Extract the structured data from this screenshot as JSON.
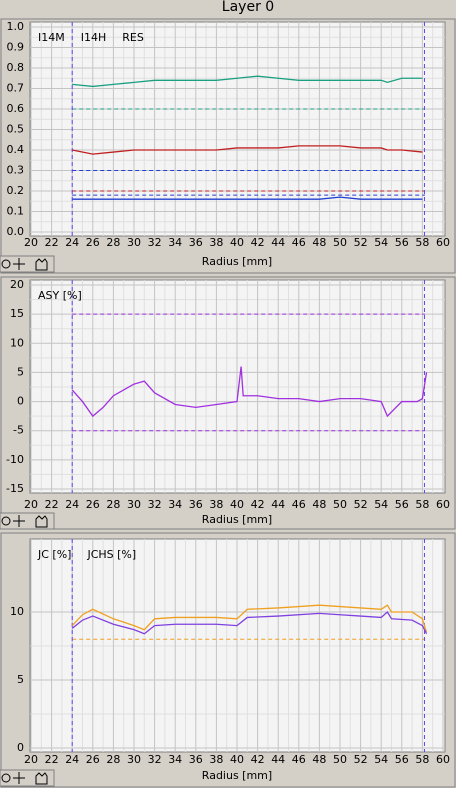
{
  "window": {
    "title": "Layer 0"
  },
  "chart_data": [
    {
      "type": "line",
      "xlabel": "Radius [mm]",
      "xlim": [
        20,
        60
      ],
      "xticks": [
        20,
        22,
        24,
        26,
        28,
        30,
        32,
        34,
        36,
        38,
        40,
        42,
        44,
        46,
        48,
        50,
        52,
        54,
        56,
        58,
        60
      ],
      "ylim": [
        0,
        1
      ],
      "yticks": [
        {
          "value": 0,
          "label": "0.0"
        },
        0.1,
        0.2,
        0.3,
        0.4,
        0.5,
        0.6,
        0.7,
        0.8,
        0.9,
        {
          "value": 1,
          "label": "1.0"
        }
      ],
      "grid": true,
      "minor_grid": true,
      "x": [
        24,
        26,
        28,
        30,
        32,
        34,
        36,
        38,
        40,
        42,
        44,
        46,
        48,
        50,
        52,
        54,
        54.6,
        56,
        58
      ],
      "series": [
        {
          "name": "I14M",
          "color": "#1aa080",
          "values": [
            0.72,
            0.71,
            0.72,
            0.73,
            0.74,
            0.74,
            0.74,
            0.74,
            0.75,
            0.76,
            0.75,
            0.74,
            0.74,
            0.74,
            0.74,
            0.74,
            0.73,
            0.75,
            0.75
          ]
        },
        {
          "name": "I14H",
          "color": "#2040d0",
          "values": [
            0.16,
            0.16,
            0.16,
            0.16,
            0.16,
            0.16,
            0.16,
            0.16,
            0.16,
            0.16,
            0.16,
            0.16,
            0.16,
            0.17,
            0.16,
            0.16,
            0.16,
            0.16,
            0.16
          ]
        },
        {
          "name": "RES",
          "color": "#c02020",
          "values": [
            0.4,
            0.38,
            0.39,
            0.4,
            0.4,
            0.4,
            0.4,
            0.4,
            0.41,
            0.41,
            0.41,
            0.42,
            0.42,
            0.42,
            0.41,
            0.41,
            0.4,
            0.4,
            0.39
          ]
        }
      ],
      "reference_lines": [
        {
          "value": 0.6,
          "color": "#1aa080"
        },
        {
          "value": 0.3,
          "color": "#2040d0"
        },
        {
          "value": 0.2,
          "color": "#c02020"
        },
        {
          "value": 0.18,
          "color": "#2040d0"
        }
      ],
      "x_reference_lines": [
        {
          "value": 24,
          "color": "#6040f0"
        },
        {
          "value": 58.2,
          "color": "#6040f0"
        }
      ]
    },
    {
      "type": "line",
      "xlabel": "Radius [mm]",
      "xlim": [
        20,
        60
      ],
      "xticks": [
        20,
        22,
        24,
        26,
        28,
        30,
        32,
        34,
        36,
        38,
        40,
        42,
        44,
        46,
        48,
        50,
        52,
        54,
        56,
        58,
        60
      ],
      "ylim": [
        -15,
        20
      ],
      "yticks": [
        -15,
        -10,
        -5,
        0,
        5,
        10,
        15,
        20
      ],
      "grid": true,
      "minor_grid": true,
      "x": [
        24,
        25,
        26,
        27,
        28,
        30,
        31,
        32,
        34,
        36,
        38,
        40,
        40.4,
        40.6,
        42,
        44,
        46,
        48,
        50,
        52,
        54,
        54.6,
        56,
        57.5,
        58,
        58.4
      ],
      "series": [
        {
          "name": "ASY [%]",
          "color": "#a030e0",
          "values": [
            2,
            0,
            -2.5,
            -1,
            1,
            3,
            3.5,
            1.5,
            -0.5,
            -1,
            -0.5,
            0,
            6,
            1,
            1,
            0.5,
            0.5,
            0,
            0.5,
            0.5,
            0,
            -2.5,
            0,
            0,
            0.5,
            5
          ]
        }
      ],
      "reference_lines": [
        {
          "value": 15,
          "color": "#a030e0"
        },
        {
          "value": -5,
          "color": "#a030e0"
        }
      ],
      "x_reference_lines": [
        {
          "value": 24,
          "color": "#6040f0"
        },
        {
          "value": 58.2,
          "color": "#6040f0"
        }
      ]
    },
    {
      "type": "line",
      "xlabel": "Radius [mm]",
      "xlim": [
        20,
        60
      ],
      "xticks": [
        20,
        22,
        24,
        26,
        28,
        30,
        32,
        34,
        36,
        38,
        40,
        42,
        44,
        46,
        48,
        50,
        52,
        54,
        56,
        58,
        60
      ],
      "ylim": [
        0,
        15
      ],
      "yticks": [
        0,
        5,
        10
      ],
      "grid": true,
      "minor_grid": true,
      "x": [
        24,
        25,
        26,
        28,
        30,
        31,
        32,
        34,
        36,
        38,
        40,
        41,
        44,
        48,
        50,
        52,
        54,
        54.6,
        55,
        57,
        58,
        58.4
      ],
      "series": [
        {
          "name": "JC [%]",
          "color": "#f0a020",
          "values": [
            9,
            9.8,
            10.2,
            9.5,
            9,
            8.7,
            9.5,
            9.6,
            9.6,
            9.6,
            9.5,
            10.2,
            10.3,
            10.5,
            10.4,
            10.3,
            10.2,
            10.5,
            10,
            10,
            9.5,
            8.5
          ]
        },
        {
          "name": "JCHS [%]",
          "color": "#8040e0",
          "values": [
            8.8,
            9.4,
            9.7,
            9.1,
            8.7,
            8.4,
            9,
            9.1,
            9.1,
            9.1,
            9,
            9.6,
            9.7,
            9.9,
            9.8,
            9.7,
            9.6,
            10,
            9.5,
            9.4,
            9,
            8.4
          ]
        }
      ],
      "reference_lines": [
        {
          "value": 8,
          "color": "#f0a020"
        }
      ],
      "x_reference_lines": [
        {
          "value": 24,
          "color": "#6040f0"
        },
        {
          "value": 58.2,
          "color": "#6040f0"
        }
      ]
    }
  ]
}
